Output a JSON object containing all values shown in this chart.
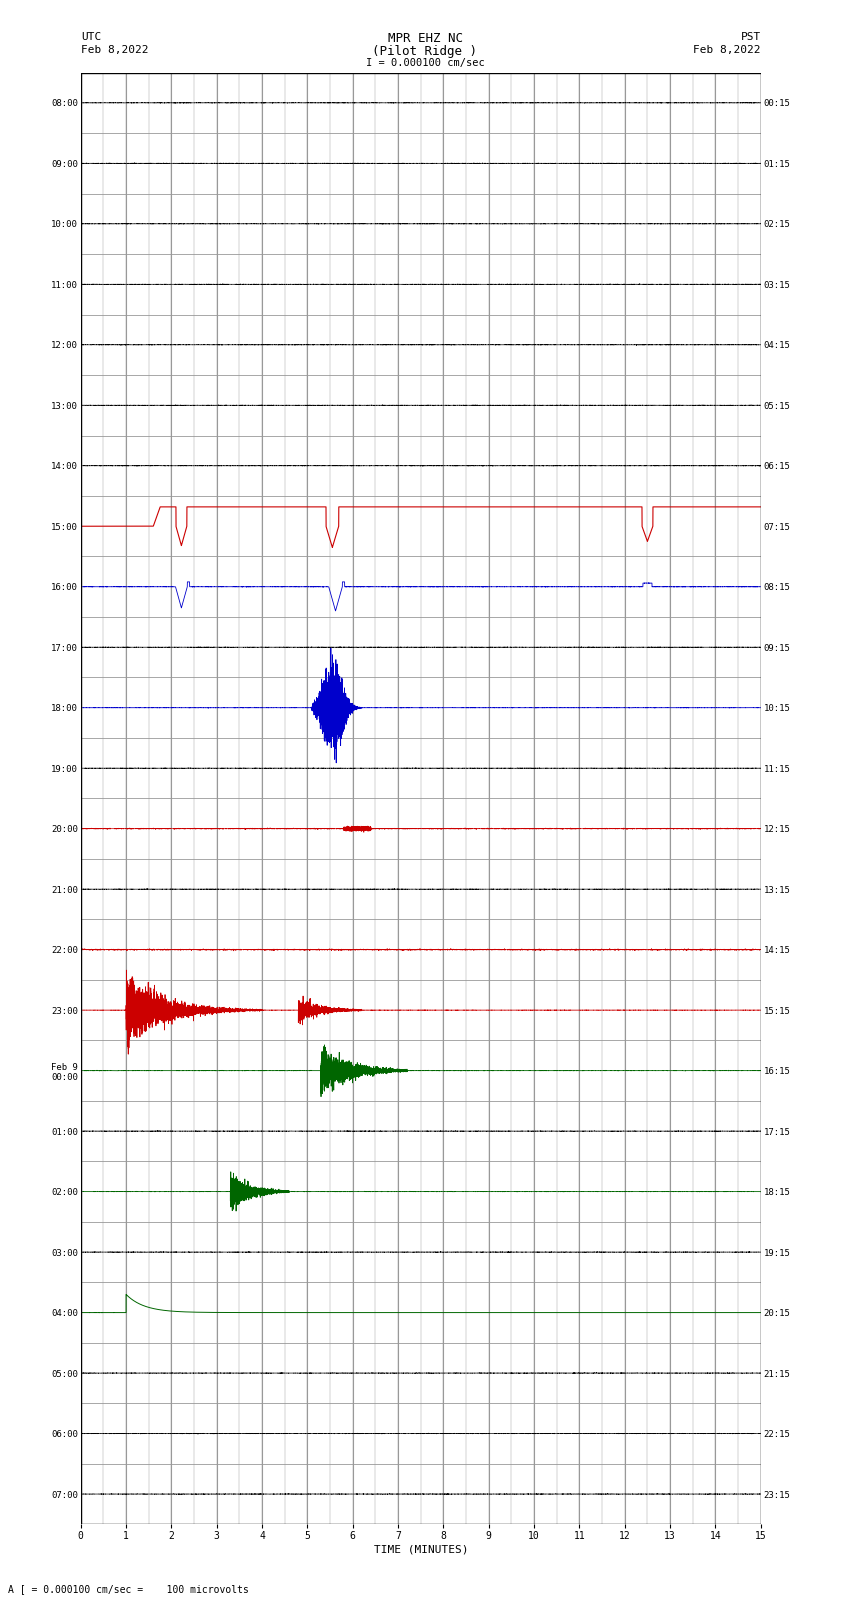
{
  "title_line1": "MPR EHZ NC",
  "title_line2": "(Pilot Ridge )",
  "title_line3": "I = 0.000100 cm/sec",
  "left_label_line1": "UTC",
  "left_label_line2": "Feb 8,2022",
  "right_label_line1": "PST",
  "right_label_line2": "Feb 8,2022",
  "bottom_label": "TIME (MINUTES)",
  "footer_text": "A [ = 0.000100 cm/sec =    100 microvolts",
  "utc_times": [
    "08:00",
    "09:00",
    "10:00",
    "11:00",
    "12:00",
    "13:00",
    "14:00",
    "15:00",
    "16:00",
    "17:00",
    "18:00",
    "19:00",
    "20:00",
    "21:00",
    "22:00",
    "23:00",
    "Feb 9\n00:00",
    "01:00",
    "02:00",
    "03:00",
    "04:00",
    "05:00",
    "06:00",
    "07:00"
  ],
  "pst_times": [
    "00:15",
    "01:15",
    "02:15",
    "03:15",
    "04:15",
    "05:15",
    "06:15",
    "07:15",
    "08:15",
    "09:15",
    "10:15",
    "11:15",
    "12:15",
    "13:15",
    "14:15",
    "15:15",
    "16:15",
    "17:15",
    "18:15",
    "19:15",
    "20:15",
    "21:15",
    "22:15",
    "23:15"
  ],
  "n_rows": 24,
  "x_min": 0,
  "x_max": 15,
  "background_color": "#ffffff",
  "grid_color": "#999999",
  "seed": 42,
  "row_colors": [
    "#000000",
    "#000000",
    "#000000",
    "#000000",
    "#000000",
    "#000000",
    "#000000",
    "#cc0000",
    "#0000cc",
    "#000000",
    "#0000cc",
    "#000000",
    "#cc0000",
    "#000000",
    "#cc0000",
    "#cc0000",
    "#006600",
    "#000000",
    "#006600",
    "#000000",
    "#006600",
    "#000000",
    "#000000",
    "#000000"
  ],
  "row_amplitudes": [
    0.006,
    0.006,
    0.006,
    0.006,
    0.006,
    0.006,
    0.006,
    0.35,
    0.008,
    0.006,
    0.008,
    0.006,
    0.008,
    0.006,
    0.008,
    0.006,
    0.006,
    0.006,
    0.006,
    0.006,
    0.006,
    0.006,
    0.006,
    0.006
  ]
}
